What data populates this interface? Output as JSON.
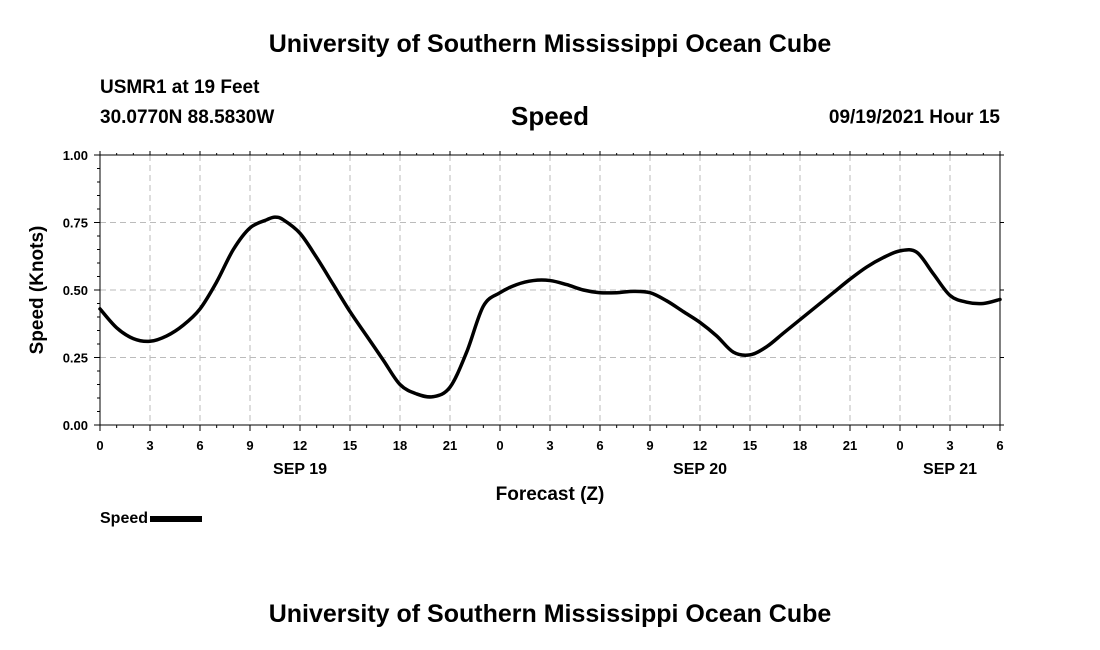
{
  "header": {
    "top_title": "University of Southern Mississippi Ocean Cube",
    "station": "USMR1 at 19 Feet",
    "coords": "30.0770N  88.5830W",
    "chart_title": "Speed",
    "datetime": "09/19/2021 Hour 15",
    "bottom_title": "University of Southern Mississippi Ocean Cube"
  },
  "legend": {
    "label": "Speed"
  },
  "colors": {
    "line": "#000000",
    "grid": "#bbbbbb"
  },
  "chart_data": {
    "type": "line",
    "title": "Speed",
    "xlabel": "Forecast (Z)",
    "ylabel": "Speed (Knots)",
    "ylim": [
      0,
      1
    ],
    "xlim": [
      0,
      54
    ],
    "x_unit": "hours from 2021-09-19 00Z",
    "y_ticks": [
      "0.00",
      "0.25",
      "0.50",
      "0.75",
      "1.00"
    ],
    "y_tick_values": [
      0,
      0.25,
      0.5,
      0.75,
      1.0
    ],
    "x_ticks": [
      0,
      3,
      6,
      9,
      12,
      15,
      18,
      21,
      24,
      27,
      30,
      33,
      36,
      39,
      42,
      45,
      48,
      51,
      54
    ],
    "x_tick_labels": [
      "0",
      "3",
      "6",
      "9",
      "12",
      "15",
      "18",
      "21",
      "0",
      "3",
      "6",
      "9",
      "12",
      "15",
      "18",
      "21",
      "0",
      "3",
      "6"
    ],
    "day_labels": [
      {
        "label": "SEP 19",
        "x": 12
      },
      {
        "label": "SEP 20",
        "x": 36
      },
      {
        "label": "SEP 21",
        "x": 51
      }
    ],
    "grid": true,
    "series": [
      {
        "name": "Speed",
        "x": [
          0,
          1,
          2,
          3,
          4,
          5,
          6,
          7,
          8,
          9,
          10,
          10.5,
          11,
          12,
          13,
          14,
          15,
          16,
          17,
          18,
          19,
          20,
          21,
          22,
          23,
          24,
          25,
          26,
          27,
          28,
          29,
          30,
          31,
          32,
          33,
          34,
          35,
          36,
          37,
          38,
          39,
          40,
          41,
          42,
          43,
          44,
          45,
          46,
          47,
          48,
          49,
          50,
          51,
          52,
          53,
          54
        ],
        "values": [
          0.43,
          0.36,
          0.32,
          0.31,
          0.33,
          0.37,
          0.43,
          0.53,
          0.65,
          0.73,
          0.76,
          0.77,
          0.76,
          0.71,
          0.62,
          0.52,
          0.42,
          0.33,
          0.24,
          0.15,
          0.115,
          0.105,
          0.14,
          0.27,
          0.44,
          0.49,
          0.52,
          0.535,
          0.535,
          0.52,
          0.5,
          0.49,
          0.49,
          0.495,
          0.49,
          0.46,
          0.42,
          0.38,
          0.33,
          0.27,
          0.26,
          0.29,
          0.34,
          0.39,
          0.44,
          0.49,
          0.54,
          0.585,
          0.62,
          0.645,
          0.64,
          0.56,
          0.48,
          0.455,
          0.45,
          0.465
        ]
      }
    ]
  }
}
